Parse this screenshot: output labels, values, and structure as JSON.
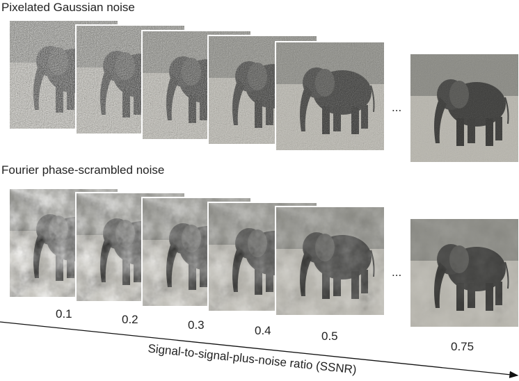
{
  "panels": [
    {
      "title": "Pixelated Gaussian noise"
    },
    {
      "title": "Fourier phase-scrambled noise"
    }
  ],
  "ssnr_levels": [
    0.1,
    0.2,
    0.3,
    0.4,
    0.5,
    0.75
  ],
  "ellipsis": "...",
  "axis_label": "Signal-to-signal-plus-noise ratio (SSNR)"
}
